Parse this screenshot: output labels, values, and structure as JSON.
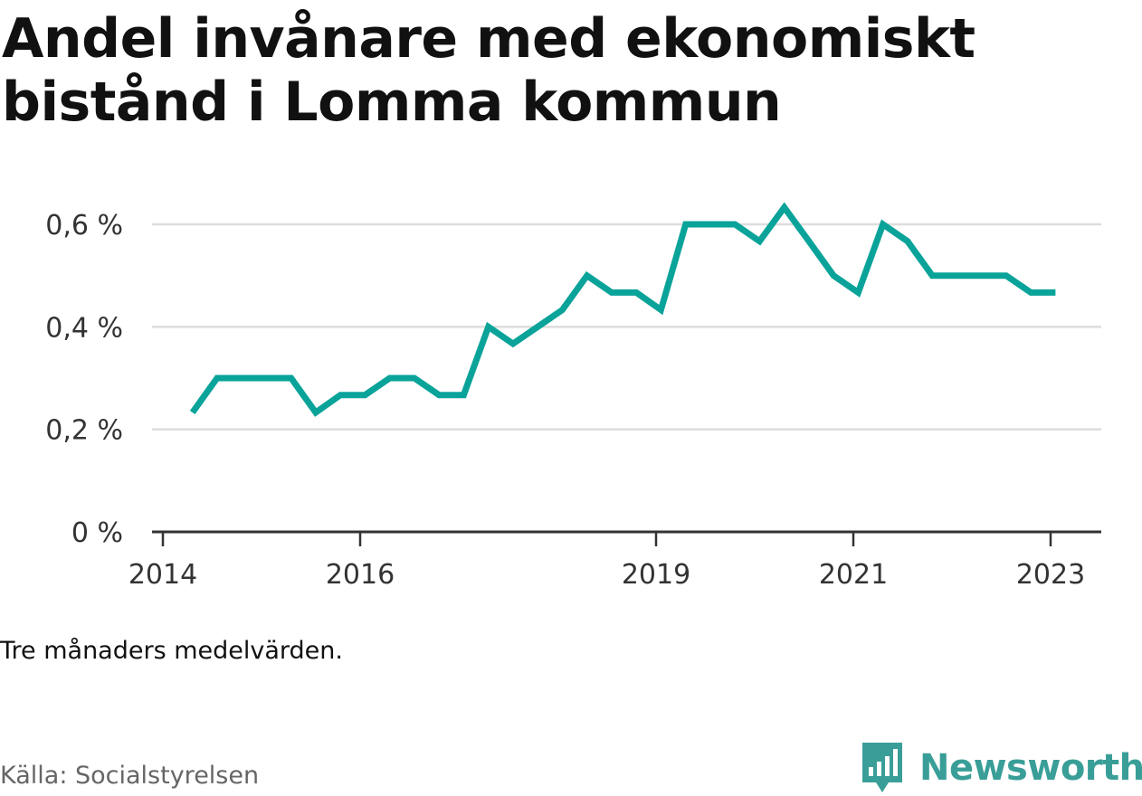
{
  "title": "Andel invånare med ekonomiskt bistånd i Lomma kommun",
  "note": "Tre månaders medelvärden.",
  "source": "Källa: Socialstyrelsen",
  "brand": {
    "name": "Newsworthy",
    "color": "#3a9e98",
    "icon": "newsworthy-logo-icon"
  },
  "colors": {
    "line": "#0aa39a",
    "grid": "#dddddd",
    "axis": "#333333"
  },
  "chart_data": {
    "type": "line",
    "title": "Andel invånare med ekonomiskt bistånd i Lomma kommun",
    "xlabel": "",
    "ylabel": "",
    "x_ticks": [
      "2014",
      "2016",
      "2019",
      "2021",
      "2023"
    ],
    "y_ticks": [
      "0 %",
      "0,2 %",
      "0,4 %",
      "0,6 %"
    ],
    "ylim": [
      0,
      0.65
    ],
    "grid": true,
    "legend": "none",
    "series": [
      {
        "x": [
          2014.3,
          2014.55,
          2014.8,
          2015.05,
          2015.3,
          2015.55,
          2015.8,
          2016.05,
          2016.3,
          2016.55,
          2016.8,
          2017.05,
          2017.3,
          2017.55,
          2017.8,
          2018.05,
          2018.3,
          2018.55,
          2018.8,
          2019.05,
          2019.3,
          2019.55,
          2019.8,
          2020.05,
          2020.3,
          2020.55,
          2020.8,
          2021.05,
          2021.3,
          2021.55,
          2021.8,
          2022.05,
          2022.3,
          2022.55,
          2022.8,
          2023.05
        ],
        "values": [
          0.233,
          0.3,
          0.3,
          0.3,
          0.3,
          0.233,
          0.267,
          0.267,
          0.3,
          0.3,
          0.267,
          0.267,
          0.4,
          0.367,
          0.4,
          0.433,
          0.5,
          0.467,
          0.467,
          0.433,
          0.6,
          0.6,
          0.6,
          0.567,
          0.633,
          0.567,
          0.5,
          0.467,
          0.6,
          0.567,
          0.5,
          0.5,
          0.5,
          0.5,
          0.467,
          0.467
        ]
      }
    ]
  }
}
